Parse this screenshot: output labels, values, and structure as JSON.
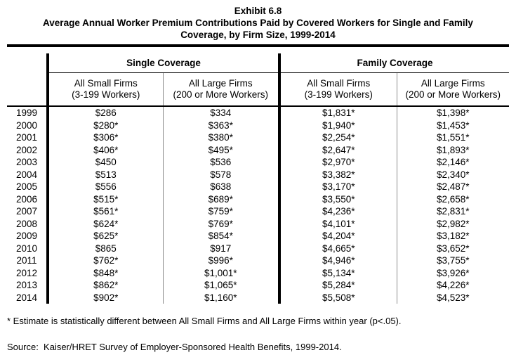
{
  "title": {
    "exhibit": "Exhibit 6.8",
    "line1": "Average Annual Worker Premium Contributions Paid by Covered Workers for Single and Family",
    "line2": "Coverage, by Firm Size, 1999-2014"
  },
  "table": {
    "group_headers": {
      "single": "Single Coverage",
      "family": "Family Coverage"
    },
    "column_headers": {
      "single_small": {
        "line1": "All Small Firms",
        "line2": "(3-199 Workers)"
      },
      "single_large": {
        "line1": "All Large Firms",
        "line2": "(200 or More Workers)"
      },
      "family_small": {
        "line1": "All Small Firms",
        "line2": "(3-199 Workers)"
      },
      "family_large": {
        "line1": "All Large Firms",
        "line2": "(200 or More Workers)"
      }
    },
    "rows": [
      {
        "year": "1999",
        "single_small": "$286",
        "single_large": "$334",
        "family_small": "$1,831*",
        "family_large": "$1,398*"
      },
      {
        "year": "2000",
        "single_small": "$280*",
        "single_large": "$363*",
        "family_small": "$1,940*",
        "family_large": "$1,453*"
      },
      {
        "year": "2001",
        "single_small": "$306*",
        "single_large": "$380*",
        "family_small": "$2,254*",
        "family_large": "$1,551*"
      },
      {
        "year": "2002",
        "single_small": "$406*",
        "single_large": "$495*",
        "family_small": "$2,647*",
        "family_large": "$1,893*"
      },
      {
        "year": "2003",
        "single_small": "$450",
        "single_large": "$536",
        "family_small": "$2,970*",
        "family_large": "$2,146*"
      },
      {
        "year": "2004",
        "single_small": "$513",
        "single_large": "$578",
        "family_small": "$3,382*",
        "family_large": "$2,340*"
      },
      {
        "year": "2005",
        "single_small": "$556",
        "single_large": "$638",
        "family_small": "$3,170*",
        "family_large": "$2,487*"
      },
      {
        "year": "2006",
        "single_small": "$515*",
        "single_large": "$689*",
        "family_small": "$3,550*",
        "family_large": "$2,658*"
      },
      {
        "year": "2007",
        "single_small": "$561*",
        "single_large": "$759*",
        "family_small": "$4,236*",
        "family_large": "$2,831*"
      },
      {
        "year": "2008",
        "single_small": "$624*",
        "single_large": "$769*",
        "family_small": "$4,101*",
        "family_large": "$2,982*"
      },
      {
        "year": "2009",
        "single_small": "$625*",
        "single_large": "$854*",
        "family_small": "$4,204*",
        "family_large": "$3,182*"
      },
      {
        "year": "2010",
        "single_small": "$865",
        "single_large": "$917",
        "family_small": "$4,665*",
        "family_large": "$3,652*"
      },
      {
        "year": "2011",
        "single_small": "$762*",
        "single_large": "$996*",
        "family_small": "$4,946*",
        "family_large": "$3,755*"
      },
      {
        "year": "2012",
        "single_small": "$848*",
        "single_large": "$1,001*",
        "family_small": "$5,134*",
        "family_large": "$3,926*"
      },
      {
        "year": "2013",
        "single_small": "$862*",
        "single_large": "$1,065*",
        "family_small": "$5,284*",
        "family_large": "$4,226*"
      },
      {
        "year": "2014",
        "single_small": "$902*",
        "single_large": "$1,160*",
        "family_small": "$5,508*",
        "family_large": "$4,523*"
      }
    ]
  },
  "footnote": "* Estimate is statistically different between All Small Firms and All Large Firms within year (p<.05).",
  "source": "Source:  Kaiser/HRET Survey of Employer-Sponsored Health Benefits, 1999-2014.",
  "colors": {
    "text": "#000000",
    "rule": "#000000",
    "thick_line": "#000000",
    "thin_line": "#8c8c8c",
    "background": "#ffffff"
  }
}
